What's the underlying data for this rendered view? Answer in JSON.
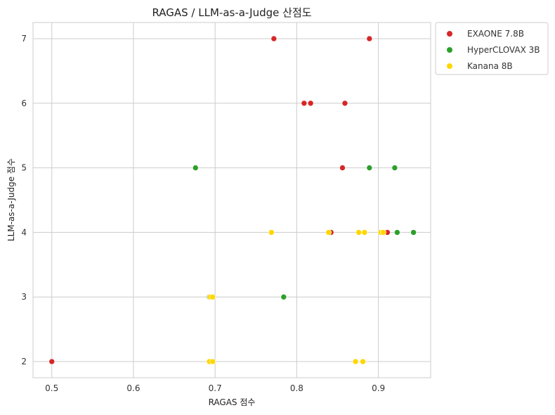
{
  "chart_data": {
    "type": "scatter",
    "title": "RAGAS / LLM-as-a-Judge 산점도",
    "xlabel": "RAGAS 점수",
    "ylabel": "LLM-as-a-Judge 점수",
    "xlim": [
      0.477,
      0.964
    ],
    "ylim": [
      1.75,
      7.25
    ],
    "xticks": [
      0.5,
      0.6,
      0.7,
      0.8,
      0.9
    ],
    "xtick_labels": [
      "0.5",
      "0.6",
      "0.7",
      "0.8",
      "0.9"
    ],
    "yticks": [
      2,
      3,
      4,
      5,
      6,
      7
    ],
    "ytick_labels": [
      "2",
      "3",
      "4",
      "5",
      "6",
      "7"
    ],
    "grid": true,
    "legend_position": "outside-top-right",
    "series": [
      {
        "name": "EXAONE 7.8B",
        "color": "#d62728",
        "points": [
          {
            "x": 0.772,
            "y": 7
          },
          {
            "x": 0.889,
            "y": 7
          },
          {
            "x": 0.809,
            "y": 6
          },
          {
            "x": 0.817,
            "y": 6
          },
          {
            "x": 0.859,
            "y": 6
          },
          {
            "x": 0.856,
            "y": 5
          },
          {
            "x": 0.842,
            "y": 4
          },
          {
            "x": 0.911,
            "y": 4
          },
          {
            "x": 0.5,
            "y": 2
          }
        ]
      },
      {
        "name": "HyperCLOVAX 3B",
        "color": "#2ca02c",
        "points": [
          {
            "x": 0.676,
            "y": 5
          },
          {
            "x": 0.889,
            "y": 5
          },
          {
            "x": 0.92,
            "y": 5
          },
          {
            "x": 0.923,
            "y": 4
          },
          {
            "x": 0.943,
            "y": 4
          },
          {
            "x": 0.693,
            "y": 3
          },
          {
            "x": 0.784,
            "y": 3
          }
        ]
      },
      {
        "name": "Kanana 8B",
        "color": "#ffd700",
        "points": [
          {
            "x": 0.769,
            "y": 4
          },
          {
            "x": 0.839,
            "y": 4
          },
          {
            "x": 0.876,
            "y": 4
          },
          {
            "x": 0.883,
            "y": 4
          },
          {
            "x": 0.903,
            "y": 4
          },
          {
            "x": 0.906,
            "y": 4
          },
          {
            "x": 0.694,
            "y": 3
          },
          {
            "x": 0.697,
            "y": 3
          },
          {
            "x": 0.693,
            "y": 2
          },
          {
            "x": 0.697,
            "y": 2
          },
          {
            "x": 0.872,
            "y": 2
          },
          {
            "x": 0.881,
            "y": 2
          }
        ]
      }
    ]
  }
}
